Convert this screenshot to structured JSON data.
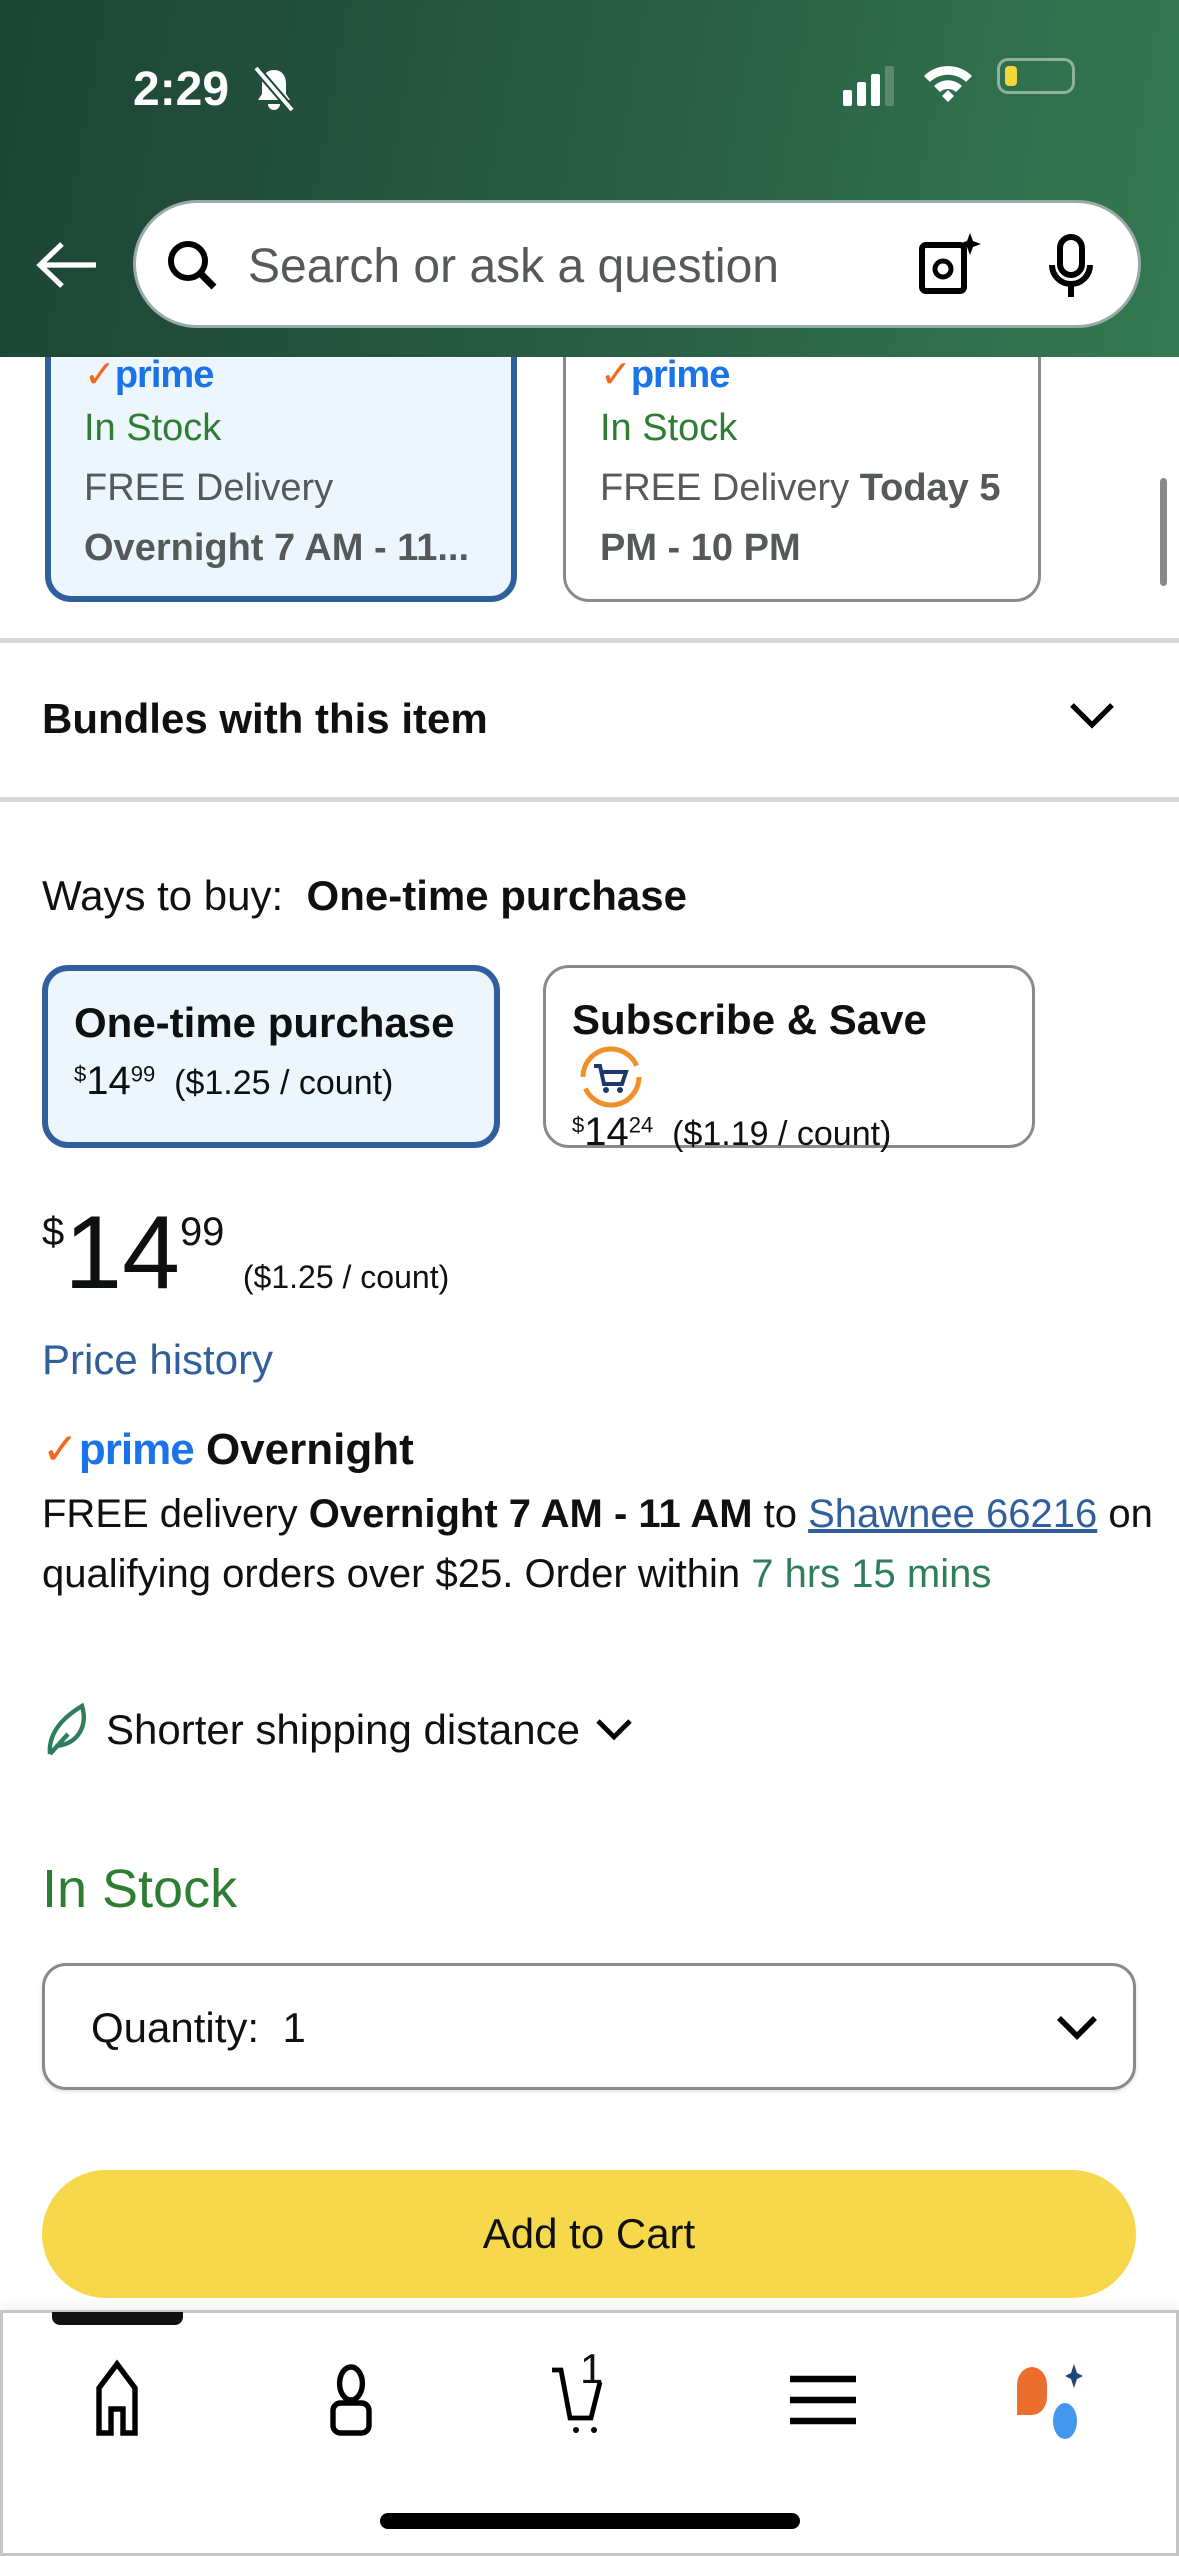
{
  "status_bar": {
    "time": "2:29"
  },
  "search": {
    "placeholder": "Search or ask a question"
  },
  "delivery_cards": [
    {
      "badge": "prime",
      "stock": "In Stock",
      "delivery": "FREE Delivery",
      "window": "Overnight 7 AM - 11...",
      "selected": true
    },
    {
      "badge": "prime",
      "stock": "In Stock",
      "delivery": "FREE Delivery",
      "window_bold_a": "Today 5",
      "window_bold_b": "PM - 10 PM",
      "selected": false
    }
  ],
  "bundles": {
    "label": "Bundles with this item"
  },
  "ways_to_buy": {
    "label": "Ways to buy:",
    "selected": "One-time purchase",
    "options": [
      {
        "title": "One-time purchase",
        "currency": "$",
        "whole": "14",
        "cents": "99",
        "unit": "($1.25 / count)",
        "selected": true
      },
      {
        "title": "Subscribe & Save",
        "currency": "$",
        "whole": "14",
        "cents": "24",
        "unit": "($1.19 / count)",
        "selected": false
      }
    ]
  },
  "price": {
    "currency": "$",
    "whole": "14",
    "cents": "99",
    "unit": "($1.25 / count)"
  },
  "price_history": "Price history",
  "prime_delivery": {
    "badge": "prime",
    "title": "Overnight",
    "t1": "FREE delivery ",
    "t2": "Overnight 7 AM - 11 AM",
    "t3": " to ",
    "location": "Shawnee 66216",
    "t4": " on qualifying orders over $25. Order within ",
    "countdown": "7 hrs 15 mins"
  },
  "shipping_note": "Shorter shipping distance",
  "stock": "In Stock",
  "quantity": {
    "label": "Quantity:",
    "value": "1"
  },
  "add_to_cart": "Add to Cart",
  "nav": {
    "cart_count": "1",
    "items": [
      "home",
      "account",
      "cart",
      "menu",
      "rufus"
    ]
  },
  "colors": {
    "accent": "#2f5f9c",
    "in_stock": "#2e7d32",
    "cta": "#f7d84a",
    "prime": "#1a73e8"
  }
}
